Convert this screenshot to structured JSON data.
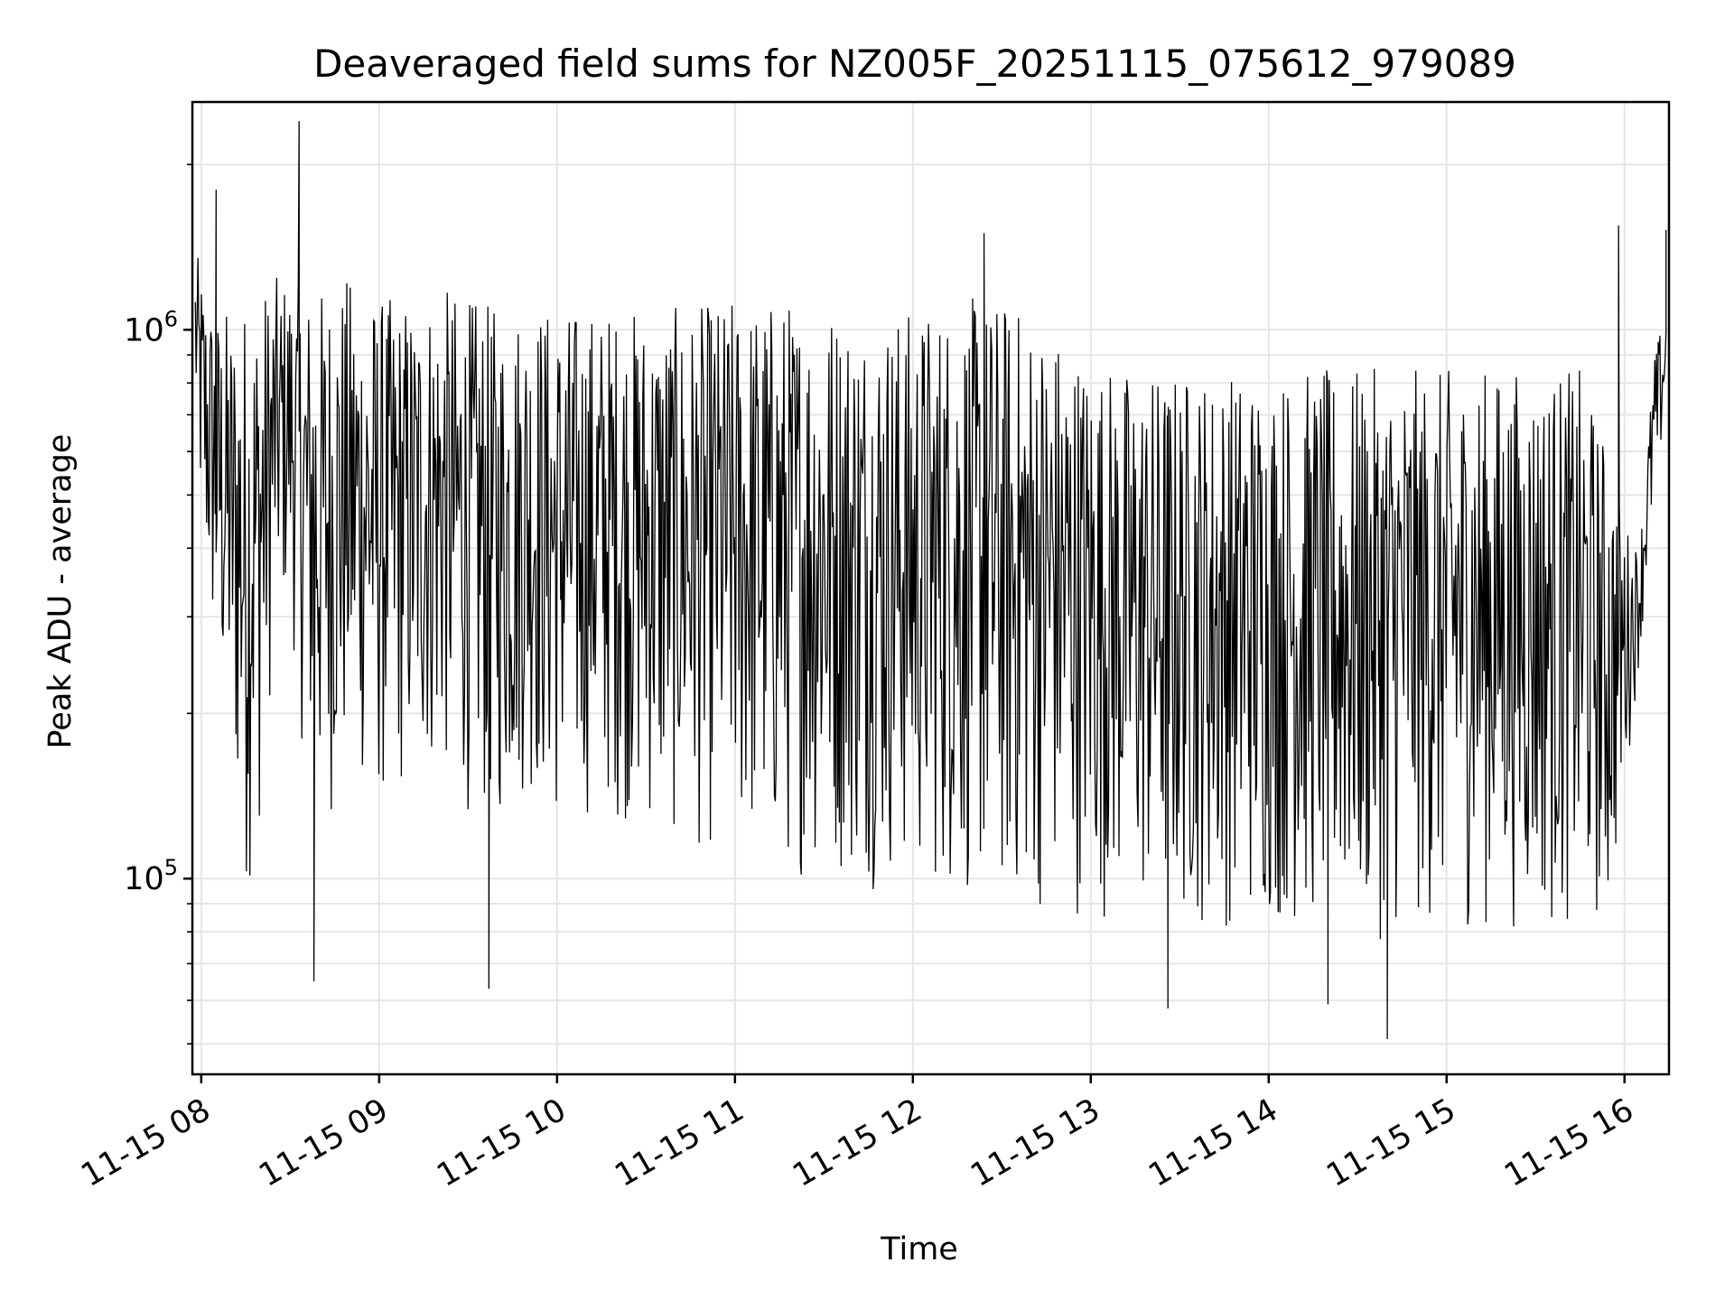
{
  "chart_data": {
    "type": "line",
    "title": "Deaveraged field sums for NZ005F_20251115_075612_979089",
    "xlabel": "Time",
    "ylabel": "Peak ADU - average",
    "yscale": "log",
    "ylim": [
      44000,
      2600000
    ],
    "xlim": [
      "2025-11-15 07:57",
      "2025-11-15 16:15"
    ],
    "grid": true,
    "line_color": "#000000",
    "x_ticks": [
      "11-15 08",
      "11-15 09",
      "11-15 10",
      "11-15 11",
      "11-15 12",
      "11-15 13",
      "11-15 14",
      "11-15 15",
      "11-15 16"
    ],
    "y_ticks": [
      {
        "value": 100000,
        "base": "10",
        "exp": "5"
      },
      {
        "value": 1000000,
        "base": "10",
        "exp": "6"
      }
    ],
    "series": [
      {
        "x": [
          "2025-11-15 07:58",
          "2025-11-15 08:00",
          "2025-11-15 08:02",
          "2025-11-15 08:05",
          "2025-11-15 08:10",
          "2025-11-15 08:15",
          "2025-11-15 08:20",
          "2025-11-15 08:25",
          "2025-11-15 08:30",
          "2025-11-15 08:35",
          "2025-11-15 08:40",
          "2025-11-15 08:45",
          "2025-11-15 08:50",
          "2025-11-15 08:55",
          "2025-11-15 09:00",
          "2025-11-15 09:10",
          "2025-11-15 09:20",
          "2025-11-15 09:30",
          "2025-11-15 09:40",
          "2025-11-15 09:50",
          "2025-11-15 10:00",
          "2025-11-15 10:15",
          "2025-11-15 10:30",
          "2025-11-15 10:45",
          "2025-11-15 11:00",
          "2025-11-15 11:15",
          "2025-11-15 11:30",
          "2025-11-15 11:45",
          "2025-11-15 12:00",
          "2025-11-15 12:15",
          "2025-11-15 12:30",
          "2025-11-15 12:45",
          "2025-11-15 13:00",
          "2025-11-15 13:15",
          "2025-11-15 13:30",
          "2025-11-15 13:45",
          "2025-11-15 14:00",
          "2025-11-15 14:15",
          "2025-11-15 14:30",
          "2025-11-15 14:45",
          "2025-11-15 15:00",
          "2025-11-15 15:15",
          "2025-11-15 15:30",
          "2025-11-15 15:45",
          "2025-11-15 15:55",
          "2025-11-15 16:00",
          "2025-11-15 16:05",
          "2025-11-15 16:10",
          "2025-11-15 16:14"
        ],
        "low": [
          650000,
          400000,
          300000,
          220000,
          150000,
          90000,
          120000,
          280000,
          300000,
          150000,
          120000,
          130000,
          150000,
          140000,
          130000,
          140000,
          150000,
          130000,
          120000,
          140000,
          120000,
          130000,
          120000,
          110000,
          110000,
          100000,
          100000,
          95000,
          95000,
          90000,
          85000,
          85000,
          85000,
          80000,
          80000,
          80000,
          80000,
          78000,
          75000,
          78000,
          80000,
          80000,
          80000,
          78000,
          80000,
          140000,
          250000,
          450000,
          700000
        ],
        "high": [
          1400000,
          1300000,
          1200000,
          1100000,
          1100000,
          1150000,
          1200000,
          1250000,
          1250000,
          1200000,
          1200000,
          1250000,
          1250000,
          1200000,
          1150000,
          1150000,
          1200000,
          1150000,
          1100000,
          1150000,
          1100000,
          1100000,
          1100000,
          1100000,
          1150000,
          1150000,
          1150000,
          1100000,
          1100000,
          1150000,
          1150000,
          1050000,
          900000,
          850000,
          850000,
          850000,
          850000,
          850000,
          850000,
          850000,
          850000,
          850000,
          850000,
          850000,
          600000,
          450000,
          400000,
          900000,
          1100000
        ],
        "spikes": [
          {
            "x": "2025-11-15 08:05",
            "y": 1800000
          },
          {
            "x": "2025-11-15 08:33",
            "y": 2400000
          },
          {
            "x": "2025-11-15 12:24",
            "y": 1500000
          },
          {
            "x": "2025-11-15 15:58",
            "y": 1550000
          },
          {
            "x": "2025-11-15 16:14",
            "y": 1520000
          }
        ],
        "dips": [
          {
            "x": "2025-11-15 08:38",
            "y": 65000
          },
          {
            "x": "2025-11-15 09:37",
            "y": 63000
          },
          {
            "x": "2025-11-15 13:26",
            "y": 58000
          },
          {
            "x": "2025-11-15 14:20",
            "y": 59000
          },
          {
            "x": "2025-11-15 14:40",
            "y": 51000
          }
        ]
      }
    ]
  }
}
